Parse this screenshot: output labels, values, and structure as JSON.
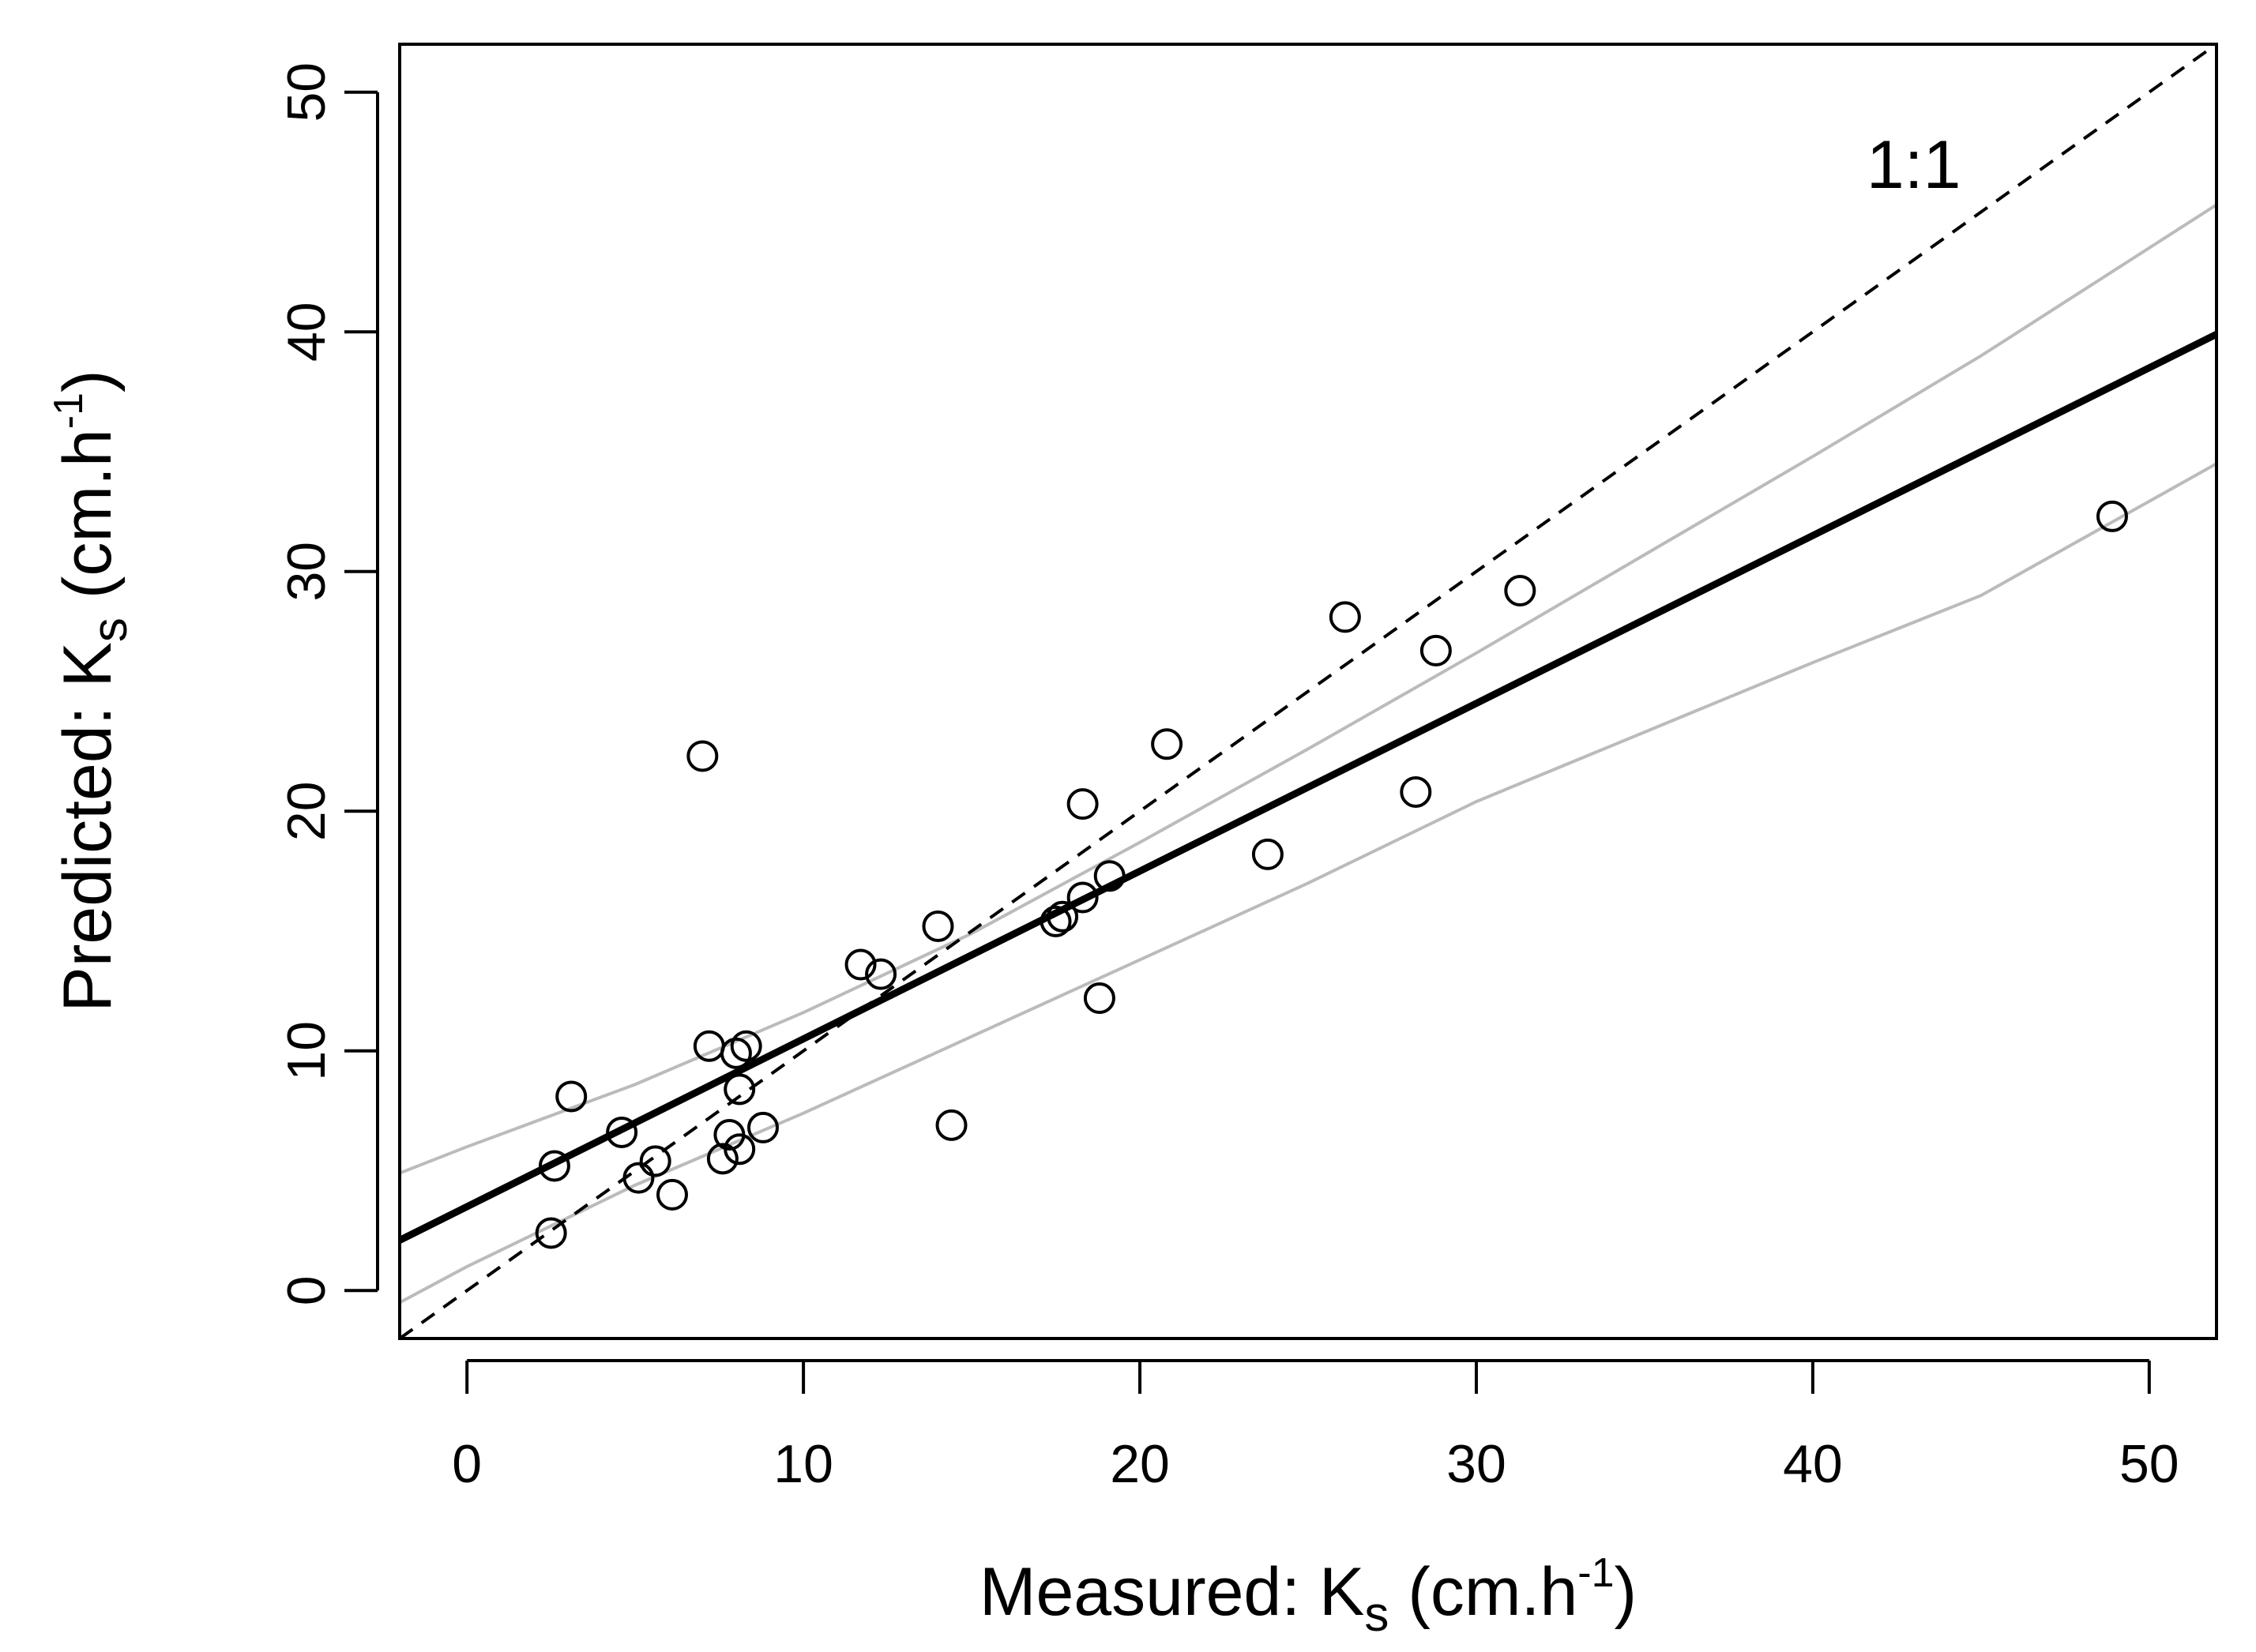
{
  "chart_data": {
    "type": "scatter",
    "xlabel": {
      "prefix": "Measured: K",
      "sub": "s",
      "mid": " (cm.h",
      "sup": "-1",
      "suffix": ")"
    },
    "ylabel": {
      "prefix": "Predicted: K",
      "sub": "s",
      "mid": " (cm.h",
      "sup": "-1",
      "suffix": ")"
    },
    "xlim": [
      -2,
      52
    ],
    "ylim": [
      -2,
      52
    ],
    "xticks": [
      0,
      10,
      20,
      30,
      40,
      50
    ],
    "yticks": [
      0,
      10,
      20,
      30,
      40,
      50
    ],
    "grid": false,
    "annotation": {
      "text": "1:1",
      "x": 43,
      "y": 47
    },
    "reference_line": {
      "name": "1:1",
      "style": "dashed",
      "color": "#000000",
      "slope": 1,
      "intercept": 0
    },
    "fit_line": {
      "name": "regression",
      "style": "solid",
      "color": "#000000",
      "slope": 0.7,
      "intercept": 3.5
    },
    "confidence_band": {
      "color": "#bbbbbb",
      "x": [
        -2,
        0,
        5,
        10,
        15,
        20,
        25,
        30,
        35,
        40,
        45,
        52
      ],
      "upper": [
        4.9,
        6.0,
        8.6,
        11.6,
        14.9,
        18.7,
        22.6,
        26.6,
        30.7,
        34.8,
        39.0,
        45.3
      ],
      "lower": [
        -0.5,
        1.0,
        4.4,
        7.4,
        10.6,
        13.8,
        17.0,
        20.4,
        23.3,
        26.2,
        29.0,
        34.5
      ]
    },
    "series": [
      {
        "name": "observations",
        "marker": "open-circle",
        "points": [
          [
            2.5,
            2.4
          ],
          [
            2.6,
            5.2
          ],
          [
            3.1,
            8.1
          ],
          [
            4.6,
            6.6
          ],
          [
            5.1,
            4.7
          ],
          [
            5.6,
            5.4
          ],
          [
            6.1,
            4.0
          ],
          [
            7.0,
            22.3
          ],
          [
            7.2,
            10.2
          ],
          [
            7.6,
            5.5
          ],
          [
            7.8,
            6.5
          ],
          [
            8.0,
            9.9
          ],
          [
            8.1,
            5.9
          ],
          [
            8.1,
            8.4
          ],
          [
            8.3,
            10.2
          ],
          [
            8.8,
            6.8
          ],
          [
            11.7,
            13.6
          ],
          [
            12.3,
            13.2
          ],
          [
            14.0,
            15.2
          ],
          [
            14.4,
            6.9
          ],
          [
            17.5,
            15.4
          ],
          [
            17.7,
            15.6
          ],
          [
            18.3,
            16.4
          ],
          [
            18.3,
            20.3
          ],
          [
            18.8,
            12.2
          ],
          [
            19.1,
            17.3
          ],
          [
            20.8,
            22.8
          ],
          [
            23.8,
            18.2
          ],
          [
            26.1,
            28.1
          ],
          [
            28.2,
            20.8
          ],
          [
            28.8,
            26.7
          ],
          [
            31.3,
            29.2
          ],
          [
            48.9,
            32.3
          ]
        ]
      }
    ]
  }
}
